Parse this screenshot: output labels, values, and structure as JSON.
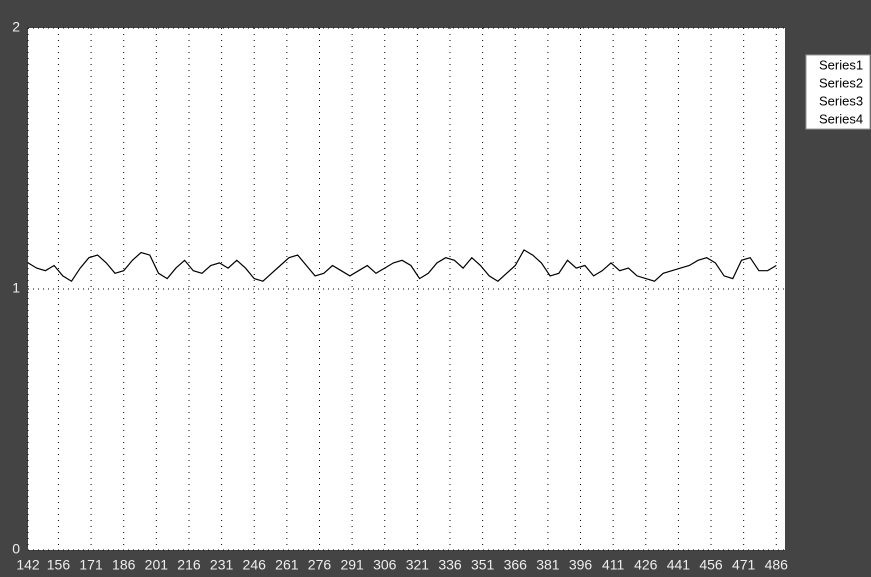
{
  "chart_data": {
    "type": "line",
    "x": [
      142,
      146,
      150,
      154,
      158,
      162,
      166,
      170,
      174,
      178,
      182,
      186,
      190,
      194,
      198,
      202,
      206,
      210,
      214,
      218,
      222,
      226,
      230,
      234,
      238,
      242,
      246,
      250,
      254,
      258,
      262,
      266,
      270,
      274,
      278,
      282,
      286,
      290,
      294,
      298,
      302,
      306,
      310,
      314,
      318,
      322,
      326,
      330,
      334,
      338,
      342,
      346,
      350,
      354,
      358,
      362,
      366,
      370,
      374,
      378,
      382,
      386,
      390,
      394,
      398,
      402,
      406,
      410,
      414,
      418,
      422,
      426,
      430,
      434,
      438,
      442,
      446,
      450,
      454,
      458,
      462,
      466,
      470,
      474,
      478,
      482,
      486
    ],
    "series": [
      {
        "name": "Series1",
        "color": "#000000",
        "values": [
          1.1,
          1.08,
          1.07,
          1.09,
          1.05,
          1.03,
          1.08,
          1.12,
          1.13,
          1.1,
          1.06,
          1.07,
          1.11,
          1.14,
          1.13,
          1.06,
          1.04,
          1.08,
          1.11,
          1.07,
          1.06,
          1.09,
          1.1,
          1.08,
          1.11,
          1.08,
          1.04,
          1.03,
          1.06,
          1.09,
          1.12,
          1.13,
          1.09,
          1.05,
          1.06,
          1.09,
          1.07,
          1.05,
          1.07,
          1.09,
          1.06,
          1.08,
          1.1,
          1.11,
          1.09,
          1.04,
          1.06,
          1.1,
          1.12,
          1.11,
          1.08,
          1.12,
          1.09,
          1.05,
          1.03,
          1.06,
          1.09,
          1.15,
          1.13,
          1.1,
          1.05,
          1.06,
          1.11,
          1.08,
          1.09,
          1.05,
          1.07,
          1.1,
          1.07,
          1.08,
          1.05,
          1.04,
          1.03,
          1.06,
          1.07,
          1.08,
          1.09,
          1.11,
          1.12,
          1.1,
          1.05,
          1.04,
          1.11,
          1.12,
          1.07,
          1.07,
          1.09
        ]
      },
      {
        "name": "Series2",
        "color": "#000000",
        "values": [
          null,
          null,
          null,
          null,
          null,
          null,
          null,
          null,
          null,
          null,
          null,
          null,
          null,
          null,
          null,
          null,
          null,
          null,
          null,
          null,
          null,
          null,
          null,
          null,
          null,
          null,
          null,
          null,
          null,
          null,
          null,
          null,
          null,
          null,
          null,
          null,
          null,
          null,
          null,
          null,
          null,
          null,
          null,
          null,
          null,
          null,
          null,
          null,
          null,
          null,
          null,
          null,
          null,
          null,
          null,
          null,
          null,
          null,
          null,
          null,
          null,
          null,
          null,
          null,
          null,
          null,
          null,
          null,
          null,
          null,
          null,
          null,
          null,
          null,
          null,
          null,
          null,
          null,
          null,
          null,
          null,
          null,
          null,
          null,
          null,
          null,
          null
        ]
      },
      {
        "name": "Series3",
        "color": "#000000",
        "values": [
          null,
          null,
          null,
          null,
          null,
          null,
          null,
          null,
          null,
          null,
          null,
          null,
          null,
          null,
          null,
          null,
          null,
          null,
          null,
          null,
          null,
          null,
          null,
          null,
          null,
          null,
          null,
          null,
          null,
          null,
          null,
          null,
          null,
          null,
          null,
          null,
          null,
          null,
          null,
          null,
          null,
          null,
          null,
          null,
          null,
          null,
          null,
          null,
          null,
          null,
          null,
          null,
          null,
          null,
          null,
          null,
          null,
          null,
          null,
          null,
          null,
          null,
          null,
          null,
          null,
          null,
          null,
          null,
          null,
          null,
          null,
          null,
          null,
          null,
          null,
          null,
          null,
          null,
          null,
          null,
          null,
          null,
          null,
          null,
          null,
          null,
          null
        ]
      },
      {
        "name": "Series4",
        "color": "#000000",
        "values": [
          null,
          null,
          null,
          null,
          null,
          null,
          null,
          null,
          null,
          null,
          null,
          null,
          null,
          null,
          null,
          null,
          null,
          null,
          null,
          null,
          null,
          null,
          null,
          null,
          null,
          null,
          null,
          null,
          null,
          null,
          null,
          null,
          null,
          null,
          null,
          null,
          null,
          null,
          null,
          null,
          null,
          null,
          null,
          null,
          null,
          null,
          null,
          null,
          null,
          null,
          null,
          null,
          null,
          null,
          null,
          null,
          null,
          null,
          null,
          null,
          null,
          null,
          null,
          null,
          null,
          null,
          null,
          null,
          null,
          null,
          null,
          null,
          null,
          null,
          null,
          null,
          null,
          null,
          null,
          null,
          null,
          null,
          null,
          null,
          null,
          null,
          null
        ]
      }
    ],
    "xlim": [
      142,
      490
    ],
    "xticks": [
      142,
      156,
      171,
      186,
      201,
      216,
      231,
      246,
      261,
      276,
      291,
      306,
      321,
      336,
      351,
      366,
      381,
      396,
      411,
      426,
      441,
      456,
      471,
      486
    ],
    "ylim": [
      0,
      2
    ],
    "yticks": [
      0,
      1,
      2
    ],
    "grid": true,
    "legend": "upper right"
  }
}
